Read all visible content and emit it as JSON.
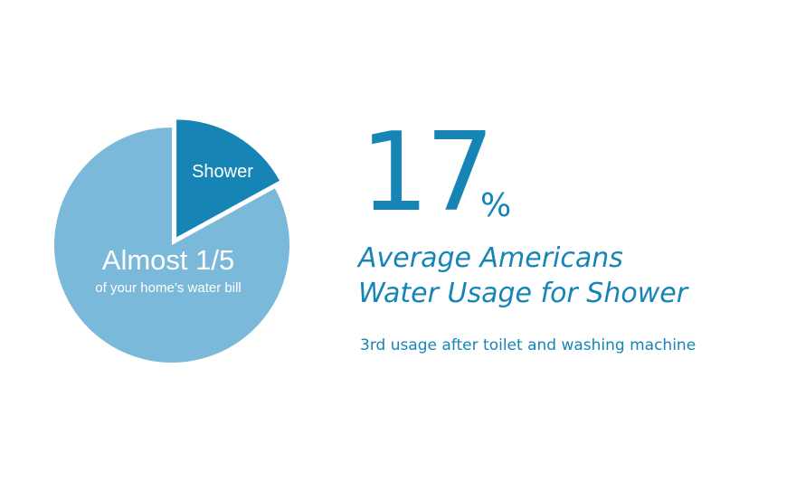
{
  "chart_data": {
    "type": "pie",
    "slices": [
      {
        "label": "Shower",
        "value": 17,
        "color": "#1685b6"
      },
      {
        "label": "",
        "value": 83,
        "color": "#7ab9d9"
      }
    ],
    "pie_annotation": {
      "title": "Almost 1/5",
      "subtitle": "of your home’s water bill"
    }
  },
  "stat": {
    "number": "17",
    "unit": "%"
  },
  "headline": {
    "line1": "Average Americans",
    "line2": "Water Usage for Shower"
  },
  "subtext": "3rd usage after toilet and washing machine",
  "colors": {
    "accent": "#1685b6",
    "light": "#7ab9d9",
    "background": "#ffffff"
  }
}
